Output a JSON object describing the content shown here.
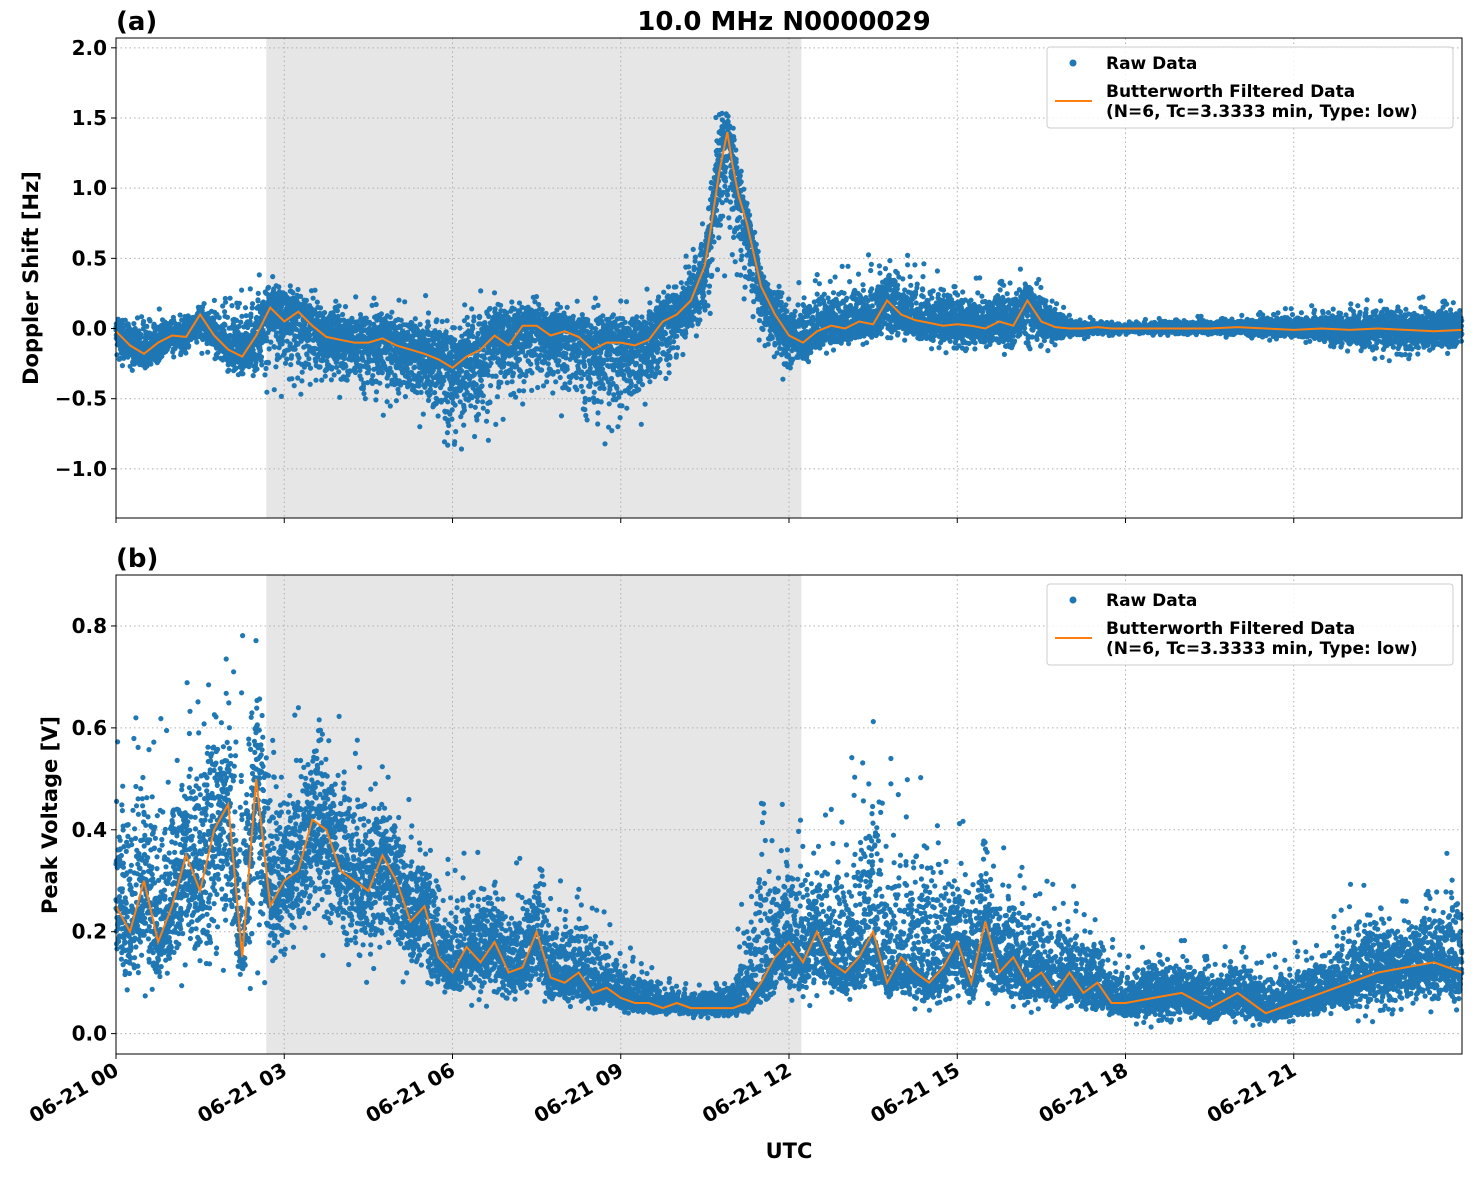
{
  "chart_data": [
    {
      "type": "line",
      "panel_label": "(a)",
      "title": "10.0 MHz N0000029",
      "ylabel": "Doppler Shift [Hz]",
      "xlabel": "",
      "xlim": [
        0,
        24
      ],
      "ylim": [
        -1.35,
        2.07
      ],
      "yticks": [
        2.0,
        1.5,
        1.0,
        0.5,
        0.0,
        -0.5,
        -1.0
      ],
      "ytick_labels": [
        "2.0",
        "1.5",
        "1.0",
        "0.5",
        "0.0",
        "−0.5",
        "−1.0"
      ],
      "grid": true,
      "legend_position": "top-right",
      "shaded_interval": [
        2.68,
        12.22
      ],
      "legend": [
        "Raw Data",
        "Butterworth Filtered Data",
        "(N=6, Tc=3.3333 min, Type: low)"
      ],
      "colors": {
        "raw": "#1f77b4",
        "filtered": "#ff7f0e",
        "shade": "#e6e6e6"
      },
      "series": [
        {
          "name": "Butterworth Filtered Data",
          "style": "line",
          "x": [
            0,
            0.25,
            0.5,
            0.75,
            1.0,
            1.25,
            1.5,
            1.75,
            2.0,
            2.25,
            2.5,
            2.75,
            3.0,
            3.25,
            3.5,
            3.75,
            4.0,
            4.25,
            4.5,
            4.75,
            5.0,
            5.25,
            5.5,
            5.75,
            6.0,
            6.25,
            6.5,
            6.75,
            7.0,
            7.25,
            7.5,
            7.75,
            8.0,
            8.25,
            8.5,
            8.75,
            9.0,
            9.25,
            9.5,
            9.75,
            10.0,
            10.25,
            10.5,
            10.6,
            10.75,
            10.9,
            11.0,
            11.1,
            11.25,
            11.5,
            11.75,
            12.0,
            12.25,
            12.5,
            12.75,
            13.0,
            13.25,
            13.5,
            13.75,
            14.0,
            14.25,
            14.5,
            14.75,
            15.0,
            15.25,
            15.5,
            15.75,
            16.0,
            16.25,
            16.5,
            16.75,
            17.0,
            17.25,
            17.5,
            17.75,
            18.0,
            18.5,
            19.0,
            19.5,
            20.0,
            20.5,
            21.0,
            21.5,
            22.0,
            22.5,
            23.0,
            23.5,
            24.0
          ],
          "values": [
            -0.02,
            -0.12,
            -0.18,
            -0.1,
            -0.05,
            -0.06,
            0.1,
            -0.05,
            -0.15,
            -0.2,
            -0.05,
            0.15,
            0.05,
            0.12,
            0.02,
            -0.06,
            -0.08,
            -0.1,
            -0.1,
            -0.07,
            -0.12,
            -0.15,
            -0.18,
            -0.22,
            -0.28,
            -0.2,
            -0.15,
            -0.05,
            -0.12,
            0.02,
            0.02,
            -0.05,
            -0.02,
            -0.06,
            -0.15,
            -0.1,
            -0.1,
            -0.12,
            -0.08,
            0.05,
            0.1,
            0.2,
            0.45,
            0.7,
            1.1,
            1.4,
            1.15,
            0.95,
            0.75,
            0.3,
            0.1,
            -0.05,
            -0.1,
            -0.02,
            0.02,
            0.0,
            0.05,
            0.03,
            0.2,
            0.1,
            0.06,
            0.04,
            0.02,
            0.03,
            0.02,
            0.0,
            0.05,
            0.02,
            0.2,
            0.05,
            0.01,
            0.0,
            0.0,
            0.01,
            0.0,
            0.0,
            0.0,
            0.0,
            0.0,
            0.01,
            0.0,
            -0.01,
            0.0,
            -0.01,
            0.0,
            -0.01,
            -0.02,
            -0.01
          ]
        },
        {
          "name": "Raw Data",
          "style": "points",
          "x": [
            0,
            0.5,
            1.0,
            1.5,
            2.0,
            2.5,
            3.0,
            3.5,
            4.0,
            4.5,
            5.0,
            5.5,
            6.0,
            6.5,
            7.0,
            7.5,
            8.0,
            8.5,
            9.0,
            9.5,
            10.0,
            10.5,
            10.75,
            11.0,
            11.25,
            11.5,
            12.0,
            12.5,
            13.0,
            13.5,
            14.0,
            14.5,
            15.0,
            15.5,
            16.0,
            16.5,
            17.0,
            18.0,
            19.0,
            20.0,
            21.0,
            22.0,
            23.0,
            24.0
          ],
          "low": [
            -0.3,
            -0.35,
            -0.25,
            -0.25,
            -0.35,
            -0.45,
            -0.5,
            -0.55,
            -0.55,
            -0.6,
            -0.7,
            -0.8,
            -1.0,
            -0.9,
            -0.6,
            -0.6,
            -0.7,
            -0.8,
            -0.95,
            -0.7,
            -0.3,
            -0.1,
            0.4,
            0.3,
            0.1,
            -0.3,
            -0.45,
            -0.2,
            -0.2,
            -0.15,
            -0.15,
            -0.15,
            -0.2,
            -0.2,
            -0.25,
            -0.2,
            -0.1,
            -0.05,
            -0.05,
            -0.08,
            -0.1,
            -0.2,
            -0.25,
            -0.2
          ],
          "high": [
            0.15,
            0.15,
            0.15,
            0.2,
            0.25,
            0.4,
            0.45,
            0.35,
            0.3,
            0.25,
            0.2,
            0.25,
            0.2,
            0.3,
            0.35,
            0.3,
            0.25,
            0.25,
            0.2,
            0.3,
            0.45,
            0.8,
            1.8,
            1.6,
            1.1,
            0.5,
            0.35,
            0.4,
            0.45,
            0.55,
            0.6,
            0.45,
            0.45,
            0.4,
            0.5,
            0.35,
            0.1,
            0.05,
            0.1,
            0.1,
            0.15,
            0.2,
            0.25,
            0.3
          ]
        }
      ]
    },
    {
      "type": "line",
      "panel_label": "(b)",
      "title": "",
      "ylabel": "Peak Voltage [V]",
      "xlabel": "UTC",
      "xlim": [
        0,
        24
      ],
      "ylim": [
        -0.04,
        0.9
      ],
      "yticks": [
        0.8,
        0.6,
        0.4,
        0.2,
        0.0
      ],
      "ytick_labels": [
        "0.8",
        "0.6",
        "0.4",
        "0.2",
        "0.0"
      ],
      "xticks": [
        0,
        3,
        6,
        9,
        12,
        15,
        18,
        21
      ],
      "xtick_labels": [
        "06-21 00",
        "06-21 03",
        "06-21 06",
        "06-21 09",
        "06-21 12",
        "06-21 15",
        "06-21 18",
        "06-21 21"
      ],
      "grid": true,
      "legend_position": "top-right",
      "shaded_interval": [
        2.68,
        12.22
      ],
      "legend": [
        "Raw Data",
        "Butterworth Filtered Data",
        "(N=6, Tc=3.3333 min, Type: low)"
      ],
      "colors": {
        "raw": "#1f77b4",
        "filtered": "#ff7f0e",
        "shade": "#e6e6e6"
      },
      "series": [
        {
          "name": "Butterworth Filtered Data",
          "style": "line",
          "x": [
            0,
            0.25,
            0.5,
            0.75,
            1.0,
            1.25,
            1.5,
            1.75,
            2.0,
            2.25,
            2.5,
            2.75,
            3.0,
            3.25,
            3.5,
            3.75,
            4.0,
            4.25,
            4.5,
            4.75,
            5.0,
            5.25,
            5.5,
            5.75,
            6.0,
            6.25,
            6.5,
            6.75,
            7.0,
            7.25,
            7.5,
            7.75,
            8.0,
            8.25,
            8.5,
            8.75,
            9.0,
            9.25,
            9.5,
            9.75,
            10.0,
            10.25,
            10.5,
            10.75,
            11.0,
            11.25,
            11.5,
            11.75,
            12.0,
            12.25,
            12.5,
            12.75,
            13.0,
            13.25,
            13.5,
            13.75,
            14.0,
            14.25,
            14.5,
            14.75,
            15.0,
            15.25,
            15.5,
            15.75,
            16.0,
            16.25,
            16.5,
            16.75,
            17.0,
            17.25,
            17.5,
            17.75,
            18.0,
            18.5,
            19.0,
            19.5,
            20.0,
            20.5,
            21.0,
            21.5,
            22.0,
            22.5,
            23.0,
            23.5,
            24.0
          ],
          "values": [
            0.25,
            0.2,
            0.3,
            0.18,
            0.25,
            0.35,
            0.28,
            0.4,
            0.45,
            0.15,
            0.5,
            0.25,
            0.3,
            0.32,
            0.42,
            0.4,
            0.32,
            0.3,
            0.28,
            0.35,
            0.3,
            0.22,
            0.25,
            0.15,
            0.12,
            0.17,
            0.14,
            0.18,
            0.12,
            0.13,
            0.2,
            0.11,
            0.1,
            0.12,
            0.08,
            0.09,
            0.07,
            0.06,
            0.06,
            0.05,
            0.06,
            0.05,
            0.05,
            0.05,
            0.05,
            0.06,
            0.1,
            0.15,
            0.18,
            0.14,
            0.2,
            0.14,
            0.12,
            0.15,
            0.2,
            0.1,
            0.15,
            0.12,
            0.1,
            0.13,
            0.18,
            0.1,
            0.22,
            0.12,
            0.15,
            0.1,
            0.12,
            0.08,
            0.12,
            0.08,
            0.1,
            0.06,
            0.06,
            0.07,
            0.08,
            0.05,
            0.08,
            0.04,
            0.06,
            0.08,
            0.1,
            0.12,
            0.13,
            0.14,
            0.12
          ]
        },
        {
          "name": "Raw Data",
          "style": "points",
          "x": [
            0,
            0.5,
            1.0,
            1.5,
            2.0,
            2.5,
            3.0,
            3.5,
            4.0,
            4.5,
            5.0,
            5.5,
            6.0,
            6.5,
            7.0,
            7.5,
            8.0,
            8.5,
            9.0,
            9.5,
            10.0,
            10.5,
            11.0,
            11.5,
            12.0,
            12.5,
            13.0,
            13.5,
            14.0,
            14.5,
            15.0,
            15.5,
            16.0,
            16.5,
            17.0,
            17.5,
            18.0,
            18.5,
            19.0,
            19.5,
            20.0,
            20.5,
            21.0,
            21.5,
            22.0,
            22.5,
            23.0,
            23.5,
            24.0
          ],
          "low": [
            0.06,
            0.05,
            0.04,
            0.05,
            0.06,
            0.08,
            0.12,
            0.12,
            0.1,
            0.08,
            0.07,
            0.06,
            0.05,
            0.05,
            0.05,
            0.04,
            0.04,
            0.04,
            0.03,
            0.03,
            0.03,
            0.03,
            0.03,
            0.03,
            0.04,
            0.04,
            0.04,
            0.04,
            0.04,
            0.04,
            0.04,
            0.03,
            0.03,
            0.03,
            0.03,
            0.02,
            0.02,
            0.01,
            0.01,
            0.01,
            0.01,
            0.01,
            0.01,
            0.02,
            0.02,
            0.02,
            0.02,
            0.02,
            0.03
          ],
          "high": [
            0.6,
            0.65,
            0.6,
            0.78,
            0.78,
            0.82,
            0.65,
            0.72,
            0.65,
            0.55,
            0.5,
            0.42,
            0.35,
            0.38,
            0.35,
            0.4,
            0.3,
            0.28,
            0.18,
            0.15,
            0.1,
            0.1,
            0.15,
            0.55,
            0.45,
            0.4,
            0.5,
            0.7,
            0.5,
            0.55,
            0.45,
            0.45,
            0.35,
            0.3,
            0.3,
            0.25,
            0.15,
            0.2,
            0.2,
            0.18,
            0.18,
            0.15,
            0.18,
            0.2,
            0.3,
            0.32,
            0.28,
            0.35,
            0.4
          ]
        }
      ]
    }
  ]
}
